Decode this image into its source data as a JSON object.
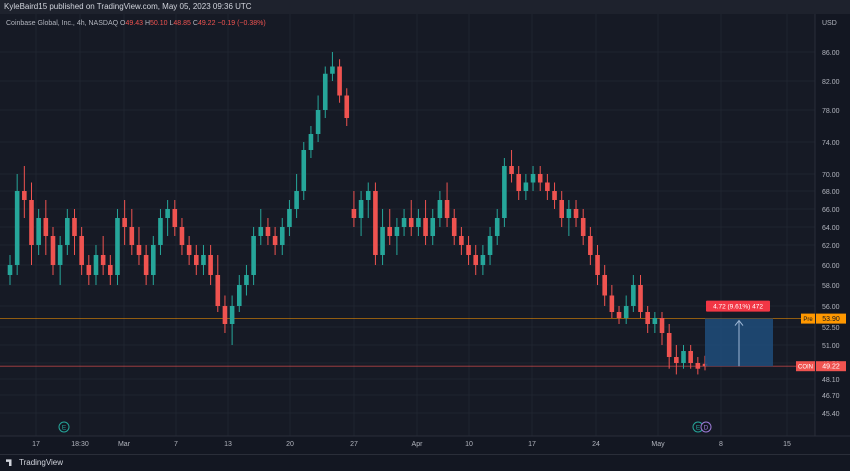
{
  "header": {
    "published": "KyleBaird15 published on TradingView.com, May 05, 2023 09:36 UTC"
  },
  "legend": {
    "symbol": "Coinbase Global, Inc., 4h, NASDAQ",
    "o_label": "O",
    "o": "49.43",
    "h_label": "H",
    "h": "50.10",
    "l_label": "L",
    "l": "48.85",
    "c_label": "C",
    "c": "49.22",
    "change": "−0.19 (−0.38%)"
  },
  "axis": {
    "currency": "USD",
    "price_ticks": [
      "86.00",
      "82.00",
      "78.00",
      "74.00",
      "70.00",
      "68.00",
      "66.00",
      "64.00",
      "62.00",
      "60.00",
      "58.00",
      "56.00",
      "52.50",
      "51.00",
      "49.50",
      "48.10",
      "46.70",
      "45.40"
    ],
    "time_ticks": [
      "17",
      "18:30",
      "Mar",
      "7",
      "13",
      "20",
      "27",
      "Apr",
      "10",
      "17",
      "24",
      "May",
      "8",
      "15"
    ]
  },
  "price_tags": {
    "pre_label": "Pre",
    "pre_value": "53.90",
    "coin_label": "COIN",
    "coin_value": "49.22"
  },
  "measure": {
    "label": "4.72 (9.61%) 472"
  },
  "markers": {
    "earnings": "E",
    "dividend": "D"
  },
  "footer": {
    "brand": "TradingView"
  },
  "colors": {
    "up": "#26a69a",
    "down": "#ef5350",
    "pre_line": "#ff9800",
    "coin_line": "#ef5350",
    "measure_box": "#1e4d7b"
  },
  "chart_data": {
    "type": "candlestick",
    "ylabel": "USD",
    "ohlc": [
      [
        59,
        61,
        58,
        60
      ],
      [
        60,
        70,
        59,
        68
      ],
      [
        68,
        71,
        65,
        67
      ],
      [
        67,
        69,
        60,
        62
      ],
      [
        62,
        66,
        61,
        65
      ],
      [
        65,
        67,
        61,
        63
      ],
      [
        63,
        64,
        59,
        60
      ],
      [
        60,
        63,
        58,
        62
      ],
      [
        62,
        66,
        61,
        65
      ],
      [
        65,
        66,
        61,
        63
      ],
      [
        63,
        64,
        59,
        60
      ],
      [
        60,
        61,
        58,
        59
      ],
      [
        59,
        62,
        58,
        61
      ],
      [
        61,
        63,
        59,
        60
      ],
      [
        60,
        61,
        58,
        59
      ],
      [
        59,
        66,
        58,
        65
      ],
      [
        65,
        67,
        62,
        64
      ],
      [
        64,
        66,
        61,
        62
      ],
      [
        62,
        64,
        60,
        61
      ],
      [
        61,
        62,
        58,
        59
      ],
      [
        59,
        63,
        58,
        62
      ],
      [
        62,
        66,
        61,
        65
      ],
      [
        65,
        67,
        63,
        66
      ],
      [
        66,
        67,
        63,
        64
      ],
      [
        64,
        65,
        61,
        62
      ],
      [
        62,
        63,
        60,
        61
      ],
      [
        61,
        62,
        59,
        60
      ],
      [
        60,
        62,
        59,
        61
      ],
      [
        61,
        62,
        58,
        59
      ],
      [
        59,
        61,
        55,
        56
      ],
      [
        56,
        57,
        52,
        53
      ],
      [
        53,
        57,
        51,
        56
      ],
      [
        56,
        59,
        55,
        58
      ],
      [
        58,
        60,
        57,
        59
      ],
      [
        59,
        64,
        58,
        63
      ],
      [
        63,
        66,
        62,
        64
      ],
      [
        64,
        65,
        62,
        63
      ],
      [
        63,
        64,
        61,
        62
      ],
      [
        62,
        65,
        61,
        64
      ],
      [
        64,
        67,
        63,
        66
      ],
      [
        66,
        70,
        65,
        68
      ],
      [
        68,
        74,
        67,
        73
      ],
      [
        73,
        76,
        72,
        75
      ],
      [
        75,
        80,
        74,
        78
      ],
      [
        78,
        84,
        77,
        83
      ],
      [
        83,
        86,
        82,
        84
      ],
      [
        84,
        85,
        79,
        80
      ],
      [
        80,
        81,
        76,
        77
      ],
      [
        66,
        68,
        64,
        65
      ],
      [
        65,
        68,
        63,
        67
      ],
      [
        67,
        69,
        65,
        68
      ],
      [
        68,
        69,
        60,
        61
      ],
      [
        61,
        66,
        60,
        64
      ],
      [
        64,
        66,
        62,
        63
      ],
      [
        63,
        65,
        61,
        64
      ],
      [
        64,
        66,
        63,
        65
      ],
      [
        65,
        67,
        63,
        64
      ],
      [
        64,
        66,
        63,
        65
      ],
      [
        65,
        67,
        62,
        63
      ],
      [
        63,
        66,
        62,
        65
      ],
      [
        65,
        68,
        64,
        67
      ],
      [
        67,
        69,
        64,
        65
      ],
      [
        65,
        66,
        62,
        63
      ],
      [
        63,
        64,
        61,
        62
      ],
      [
        62,
        63,
        60,
        61
      ],
      [
        61,
        62,
        59,
        60
      ],
      [
        60,
        62,
        59,
        61
      ],
      [
        61,
        64,
        60,
        63
      ],
      [
        63,
        66,
        62,
        65
      ],
      [
        65,
        72,
        64,
        71
      ],
      [
        71,
        73,
        69,
        70
      ],
      [
        70,
        71,
        67,
        68
      ],
      [
        68,
        70,
        67,
        69
      ],
      [
        69,
        71,
        68,
        70
      ],
      [
        70,
        71,
        68,
        69
      ],
      [
        69,
        70,
        67,
        68
      ],
      [
        68,
        69,
        66,
        67
      ],
      [
        67,
        68,
        64,
        65
      ],
      [
        65,
        67,
        63,
        66
      ],
      [
        66,
        67,
        64,
        65
      ],
      [
        65,
        66,
        62,
        63
      ],
      [
        63,
        64,
        60,
        61
      ],
      [
        61,
        62,
        58,
        59
      ],
      [
        59,
        60,
        56,
        57
      ],
      [
        57,
        58,
        54,
        55
      ],
      [
        55,
        56,
        53,
        54
      ],
      [
        54,
        57,
        53,
        56
      ],
      [
        56,
        59,
        55,
        58
      ],
      [
        58,
        59,
        54,
        55
      ],
      [
        55,
        56,
        52,
        53
      ],
      [
        53,
        55,
        52,
        54
      ],
      [
        54,
        55,
        51,
        52
      ],
      [
        52,
        53,
        49,
        50
      ],
      [
        50,
        51,
        48.5,
        49.5
      ],
      [
        49.5,
        51,
        49,
        50.5
      ],
      [
        50.5,
        51,
        49,
        49.5
      ],
      [
        49.5,
        50,
        48.5,
        49
      ],
      [
        49.43,
        50.1,
        48.85,
        49.22
      ]
    ]
  }
}
